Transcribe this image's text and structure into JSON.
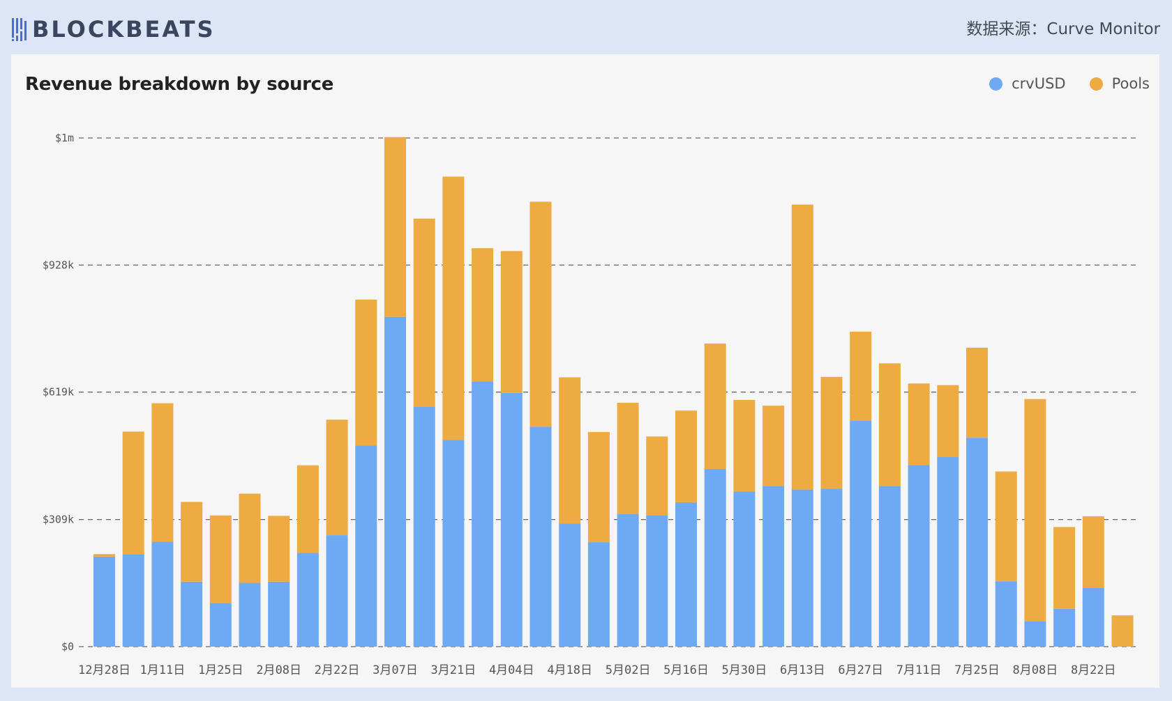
{
  "header": {
    "logo_text": "BLOCKBEATS",
    "source_text": "数据来源：Curve Monitor"
  },
  "colors": {
    "crvusd": "#6eaaf3",
    "pools": "#edab42",
    "gridline": "#666666"
  },
  "chart_data": {
    "type": "bar",
    "stacked": true,
    "title": "Revenue breakdown by source",
    "xlabel": "",
    "ylabel": "",
    "ylim": [
      0,
      1237
    ],
    "units": "k USD",
    "grid": true,
    "legend_position": "top-right",
    "y_ticks": [
      {
        "value": 0,
        "label": "$0"
      },
      {
        "value": 309,
        "label": "$309k"
      },
      {
        "value": 619,
        "label": "$619k"
      },
      {
        "value": 928,
        "label": "$928k"
      },
      {
        "value": 1237,
        "label": "$1m"
      }
    ],
    "x_tick_labels": [
      "12月28日",
      "1月11日",
      "1月25日",
      "2月08日",
      "2月22日",
      "3月07日",
      "3月21日",
      "4月04日",
      "4月18日",
      "5月02日",
      "5月16日",
      "5月30日",
      "6月13日",
      "6月27日",
      "7月11日",
      "7月25日",
      "8月08日",
      "8月22日"
    ],
    "x_tick_every": 2,
    "bar_count": 36,
    "series": [
      {
        "name": "crvUSD",
        "values": [
          219,
          225,
          255,
          158,
          106,
          155,
          158,
          228,
          271,
          489,
          802,
          583,
          503,
          645,
          617,
          535,
          299,
          254,
          322,
          320,
          351,
          432,
          377,
          391,
          382,
          384,
          549,
          391,
          442,
          461,
          508,
          159,
          62,
          92,
          143,
          0
        ]
      },
      {
        "name": "Pools",
        "values": [
          6,
          298,
          337,
          194,
          213,
          217,
          160,
          213,
          281,
          355,
          437,
          458,
          640,
          324,
          345,
          547,
          356,
          268,
          271,
          191,
          223,
          305,
          223,
          195,
          693,
          272,
          217,
          298,
          198,
          175,
          219,
          267,
          540,
          199,
          174,
          76
        ]
      }
    ]
  }
}
